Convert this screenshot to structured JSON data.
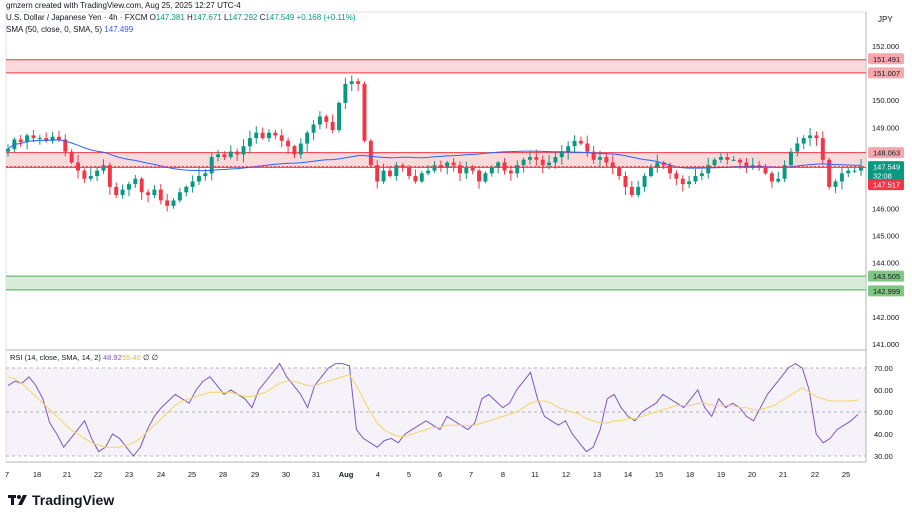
{
  "header": {
    "credit": "gmzern created with TradingView.com, Aug 25, 2025 12:27 UTC-4",
    "symbol": "U.S. Dollar / Japanese Yen · 4h · FXCM",
    "o_label": "O",
    "o": "147.381",
    "h_label": "H",
    "h": "147.671",
    "l_label": "L",
    "l": "147.292",
    "c_label": "C",
    "c": "147.549",
    "change": "+0.168 (+0.11%)",
    "sma_label": "SMA (50, close, 0, SMA, 5)",
    "sma_value": "147.499"
  },
  "currency": "JPY",
  "brand": "TradingView",
  "colors": {
    "up": "#089981",
    "down": "#f23645",
    "sma": "#2962ff",
    "rsi": "#7e57c2",
    "rsi_ma": "#f5d560",
    "resistance_zone": "#f8c9cc",
    "support_zone": "#c8e6c9",
    "current_price": "#089981",
    "marker": "#f23645"
  },
  "chart_data": [
    {
      "type": "candlestick",
      "title": "U.S. Dollar / Japanese Yen · 4h · FXCM",
      "ylim": [
        140.5,
        152.8
      ],
      "y_ticks": [
        "152.000",
        "150.000",
        "149.000",
        "146.000",
        "145.000",
        "144.000",
        "142.000",
        "141.000"
      ],
      "x_ticks": [
        "7",
        "18",
        "21",
        "22",
        "23",
        "24",
        "25",
        "28",
        "29",
        "30",
        "31",
        "Aug",
        "4",
        "5",
        "6",
        "7",
        "8",
        "11",
        "12",
        "13",
        "14",
        "15",
        "18",
        "19",
        "20",
        "21",
        "22",
        "25"
      ],
      "closes": [
        148.2,
        148.55,
        148.45,
        148.7,
        148.6,
        148.6,
        148.5,
        148.65,
        148.55,
        148.1,
        147.7,
        147.4,
        147.1,
        147.2,
        147.4,
        147.6,
        146.8,
        146.5,
        146.7,
        146.9,
        147.1,
        146.6,
        146.5,
        146.7,
        146.3,
        146.1,
        146.3,
        146.6,
        146.8,
        147.0,
        147.2,
        147.3,
        147.9,
        148.0,
        147.9,
        148.1,
        148.0,
        148.3,
        148.6,
        148.8,
        148.6,
        148.8,
        148.7,
        148.5,
        148.3,
        148.0,
        148.4,
        148.8,
        149.1,
        149.4,
        149.2,
        148.9,
        149.9,
        150.6,
        150.7,
        150.6,
        148.5,
        147.6,
        147.0,
        147.4,
        147.2,
        147.6,
        147.5,
        147.2,
        147.0,
        147.3,
        147.4,
        147.6,
        147.5,
        147.7,
        147.6,
        147.3,
        147.5,
        147.4,
        147.0,
        147.3,
        147.5,
        147.7,
        147.4,
        147.3,
        147.6,
        147.8,
        147.9,
        147.8,
        147.6,
        147.7,
        147.9,
        148.1,
        148.3,
        148.5,
        148.4,
        148.1,
        147.8,
        147.9,
        147.7,
        147.5,
        147.2,
        146.8,
        146.5,
        146.8,
        147.2,
        147.5,
        147.7,
        147.6,
        147.3,
        147.1,
        146.9,
        147.0,
        147.2,
        147.3,
        147.6,
        147.8,
        147.9,
        147.8,
        147.8,
        147.7,
        147.5,
        147.6,
        147.5,
        147.3,
        147.0,
        147.1,
        147.6,
        148.1,
        148.4,
        148.6,
        148.7,
        148.6,
        147.8,
        146.8,
        147.0,
        147.3,
        147.4,
        147.4,
        147.549
      ],
      "sma_label": "SMA (50, close, 0, SMA, 5)",
      "sma_value": 147.499,
      "price_marks": [
        {
          "label": "151.491",
          "value": 151.491,
          "kind": "resistance"
        },
        {
          "label": "151.007",
          "value": 151.007,
          "kind": "resistance"
        },
        {
          "label": "148.063",
          "value": 148.063,
          "kind": "resistance"
        },
        {
          "label": "147.549",
          "value": 147.549,
          "kind": "current"
        },
        {
          "label": "32:08",
          "kind": "countdown"
        },
        {
          "label": "147.517",
          "value": 147.517,
          "kind": "marker"
        },
        {
          "label": "143.505",
          "value": 143.505,
          "kind": "support"
        },
        {
          "label": "142.999",
          "value": 142.999,
          "kind": "support"
        }
      ],
      "zones": [
        {
          "from": 151.007,
          "to": 151.491,
          "kind": "resistance"
        },
        {
          "from": 147.52,
          "to": 148.063,
          "kind": "resistance"
        },
        {
          "from": 142.999,
          "to": 143.505,
          "kind": "support"
        }
      ]
    },
    {
      "type": "line",
      "title": "RSI (14, close, SMA, 14, 2)",
      "rsi_value": "48.92",
      "ma_value": "55.40",
      "extra": "∅ ∅",
      "ylim": [
        25,
        75
      ],
      "y_ticks": [
        "70.00",
        "60.00",
        "50.00",
        "40.00",
        "30.00"
      ],
      "bands": [
        30,
        50,
        70
      ],
      "rsi": [
        62,
        64,
        63,
        66,
        62,
        56,
        45,
        40,
        34,
        38,
        42,
        46,
        38,
        32,
        34,
        40,
        38,
        34,
        30,
        34,
        42,
        48,
        52,
        55,
        58,
        56,
        54,
        60,
        64,
        66,
        62,
        58,
        60,
        58,
        56,
        52,
        60,
        64,
        68,
        72,
        66,
        62,
        58,
        52,
        62,
        66,
        70,
        72,
        72,
        71,
        42,
        38,
        36,
        34,
        37,
        38,
        36,
        40,
        42,
        44,
        46,
        44,
        42,
        48,
        46,
        44,
        42,
        45,
        56,
        58,
        55,
        52,
        54,
        60,
        64,
        68,
        56,
        48,
        46,
        44,
        46,
        40,
        36,
        32,
        34,
        42,
        56,
        58,
        52,
        48,
        46,
        50,
        52,
        54,
        58,
        56,
        54,
        52,
        56,
        60,
        52,
        48,
        56,
        52,
        54,
        52,
        48,
        46,
        52,
        58,
        62,
        66,
        70,
        72,
        70,
        60,
        40,
        36,
        38,
        42,
        44,
        46,
        48.92
      ],
      "rsi_ma": [
        66,
        65,
        63,
        60,
        57,
        54,
        51,
        48,
        45,
        42,
        40,
        38,
        36,
        35,
        34,
        34,
        34,
        35,
        36,
        38,
        41,
        44,
        47,
        50,
        53,
        55,
        56,
        57,
        58,
        59,
        59,
        59,
        59,
        58,
        57,
        57,
        58,
        59,
        61,
        63,
        64,
        64,
        63,
        62,
        62,
        63,
        64,
        65,
        66,
        67,
        62,
        56,
        50,
        45,
        42,
        40,
        39,
        39,
        40,
        41,
        42,
        43,
        43,
        44,
        44,
        44,
        44,
        44,
        45,
        46,
        47,
        48,
        49,
        50,
        52,
        54,
        55,
        55,
        54,
        52,
        51,
        50,
        49,
        47,
        46,
        45,
        45,
        46,
        46,
        47,
        47,
        48,
        49,
        50,
        51,
        52,
        53,
        53,
        53,
        54,
        54,
        53,
        53,
        53,
        53,
        52,
        52,
        51,
        51,
        52,
        53,
        55,
        57,
        59,
        61,
        59,
        57,
        56,
        55,
        55,
        55,
        55,
        55.4
      ]
    }
  ]
}
